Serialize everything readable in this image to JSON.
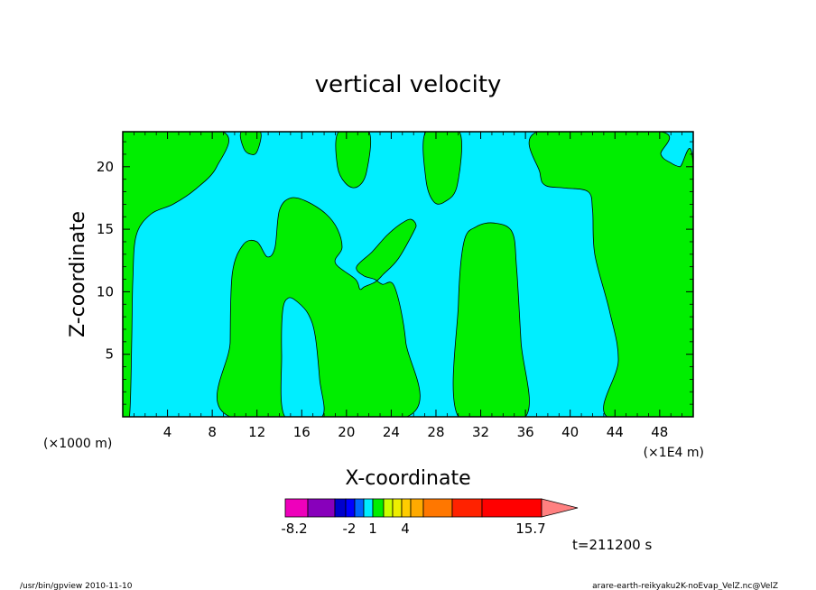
{
  "chart_data": {
    "type": "heatmap",
    "title": "vertical velocity",
    "xlabel": "X-coordinate",
    "ylabel": "Z-coordinate",
    "x_unit_left": "(×1000 m)",
    "x_unit_right": "(×1E4 m)",
    "xlim": [
      0,
      51
    ],
    "ylim": [
      0,
      22.8
    ],
    "x_ticks": [
      "4",
      "8",
      "12",
      "16",
      "20",
      "24",
      "28",
      "32",
      "36",
      "40",
      "44",
      "48"
    ],
    "y_ticks": [
      "5",
      "10",
      "15",
      "20"
    ],
    "x_tick_values": [
      4,
      8,
      12,
      16,
      20,
      24,
      28,
      32,
      36,
      40,
      44,
      48
    ],
    "y_tick_values": [
      5,
      10,
      15,
      20
    ],
    "background_color": "#00eeff",
    "region_color": "#00ee00",
    "regions": [
      {
        "name": "green-left-edge",
        "points": [
          [
            0,
            0
          ],
          [
            0.6,
            0
          ],
          [
            0.8,
            6
          ],
          [
            0.9,
            11
          ],
          [
            1.2,
            14.5
          ],
          [
            2.5,
            16.2
          ],
          [
            4.5,
            17.0
          ],
          [
            6.5,
            18.2
          ],
          [
            8.4,
            20.0
          ],
          [
            8.9,
            22.8
          ],
          [
            0,
            22.8
          ]
        ]
      },
      {
        "name": "green-top-center-left",
        "points": [
          [
            10.6,
            22.8
          ],
          [
            10.8,
            21.5
          ],
          [
            11.4,
            21.0
          ],
          [
            12.0,
            21.2
          ],
          [
            12.3,
            22.8
          ]
        ]
      },
      {
        "name": "green-top-center",
        "points": [
          [
            19.3,
            22.8
          ],
          [
            19.2,
            20.0
          ],
          [
            20.0,
            18.6
          ],
          [
            21.0,
            18.4
          ],
          [
            21.8,
            19.6
          ],
          [
            22.0,
            22.8
          ]
        ]
      },
      {
        "name": "green-top-right-center",
        "points": [
          [
            27.1,
            22.8
          ],
          [
            27.1,
            19.0
          ],
          [
            27.8,
            17.2
          ],
          [
            28.8,
            17.2
          ],
          [
            29.9,
            18.5
          ],
          [
            30.1,
            22.8
          ]
        ]
      },
      {
        "name": "green-main-center",
        "points": [
          [
            9.6,
            0
          ],
          [
            9.6,
            6
          ],
          [
            9.8,
            11.5
          ],
          [
            10.8,
            13.8
          ],
          [
            12.0,
            14.0
          ],
          [
            12.9,
            12.8
          ],
          [
            13.6,
            13.5
          ],
          [
            14.0,
            16.5
          ],
          [
            15.0,
            17.5
          ],
          [
            16.5,
            17.2
          ],
          [
            18.2,
            16.2
          ],
          [
            19.2,
            15.0
          ],
          [
            19.6,
            13.5
          ],
          [
            19.0,
            12.3
          ],
          [
            20.8,
            11.0
          ],
          [
            21.2,
            10.2
          ],
          [
            21.6,
            10.4
          ],
          [
            22.6,
            10.8
          ],
          [
            23.3,
            11.4
          ],
          [
            24.6,
            12.6
          ],
          [
            26.0,
            14.8
          ],
          [
            26.2,
            15.4
          ],
          [
            25.7,
            15.8
          ],
          [
            24.8,
            15.4
          ],
          [
            23.6,
            14.5
          ],
          [
            22.3,
            13.2
          ],
          [
            20.9,
            12.0
          ],
          [
            21.5,
            11.3
          ],
          [
            22.5,
            11.0
          ],
          [
            23.2,
            10.6
          ],
          [
            24.3,
            10.4
          ],
          [
            25.3,
            6
          ],
          [
            25.4,
            0
          ]
        ]
      },
      {
        "name": "green-center-right",
        "points": [
          [
            30.0,
            0
          ],
          [
            30.0,
            9
          ],
          [
            30.5,
            14.0
          ],
          [
            31.6,
            15.2
          ],
          [
            33.2,
            15.5
          ],
          [
            34.8,
            14.8
          ],
          [
            35.2,
            12
          ],
          [
            35.6,
            6
          ],
          [
            36.0,
            0
          ]
        ]
      },
      {
        "name": "green-right",
        "points": [
          [
            43.3,
            0
          ],
          [
            44.3,
            4.5
          ],
          [
            43.5,
            8.5
          ],
          [
            42.2,
            13
          ],
          [
            42.0,
            16.5
          ],
          [
            41.6,
            18.0
          ],
          [
            39.5,
            18.3
          ],
          [
            37.8,
            18.5
          ],
          [
            37.3,
            19.5
          ],
          [
            37.1,
            22.8
          ],
          [
            48.1,
            22.8
          ],
          [
            48.1,
            21.0
          ],
          [
            49.0,
            20.3
          ],
          [
            49.8,
            20.0
          ],
          [
            51.0,
            20.0
          ],
          [
            51.0,
            0
          ]
        ]
      }
    ],
    "region_inner_cyan": [
      {
        "name": "cyan-inner-lower",
        "points": [
          [
            14.5,
            0
          ],
          [
            14.2,
            5
          ],
          [
            14.3,
            8.5
          ],
          [
            14.8,
            9.5
          ],
          [
            15.6,
            9.2
          ],
          [
            16.6,
            8.2
          ],
          [
            17.2,
            6.5
          ],
          [
            17.6,
            3
          ],
          [
            17.8,
            0
          ]
        ]
      }
    ],
    "colorbar": {
      "colors": [
        "#ee00bb",
        "#8800bb",
        "#0000cc",
        "#0000ff",
        "#0066ff",
        "#00eeff",
        "#00ee00",
        "#ccff00",
        "#eeee00",
        "#ffcc00",
        "#ffaa00",
        "#ff7700",
        "#ff2200",
        "#ff0000",
        "#ff8080"
      ],
      "labels": [
        {
          "text": "-8.2",
          "value": -8.2
        },
        {
          "text": "-2",
          "value": -2
        },
        {
          "text": "1",
          "value": 1
        },
        {
          "text": "4",
          "value": 4
        },
        {
          "text": "15.7",
          "value": 15.7
        }
      ]
    },
    "time_label": "t=211200 s"
  },
  "footer": {
    "left": "/usr/bin/gpview  2010-11-10",
    "right": "arare-earth-reikyaku2K-noEvap_VelZ.nc@VelZ"
  }
}
